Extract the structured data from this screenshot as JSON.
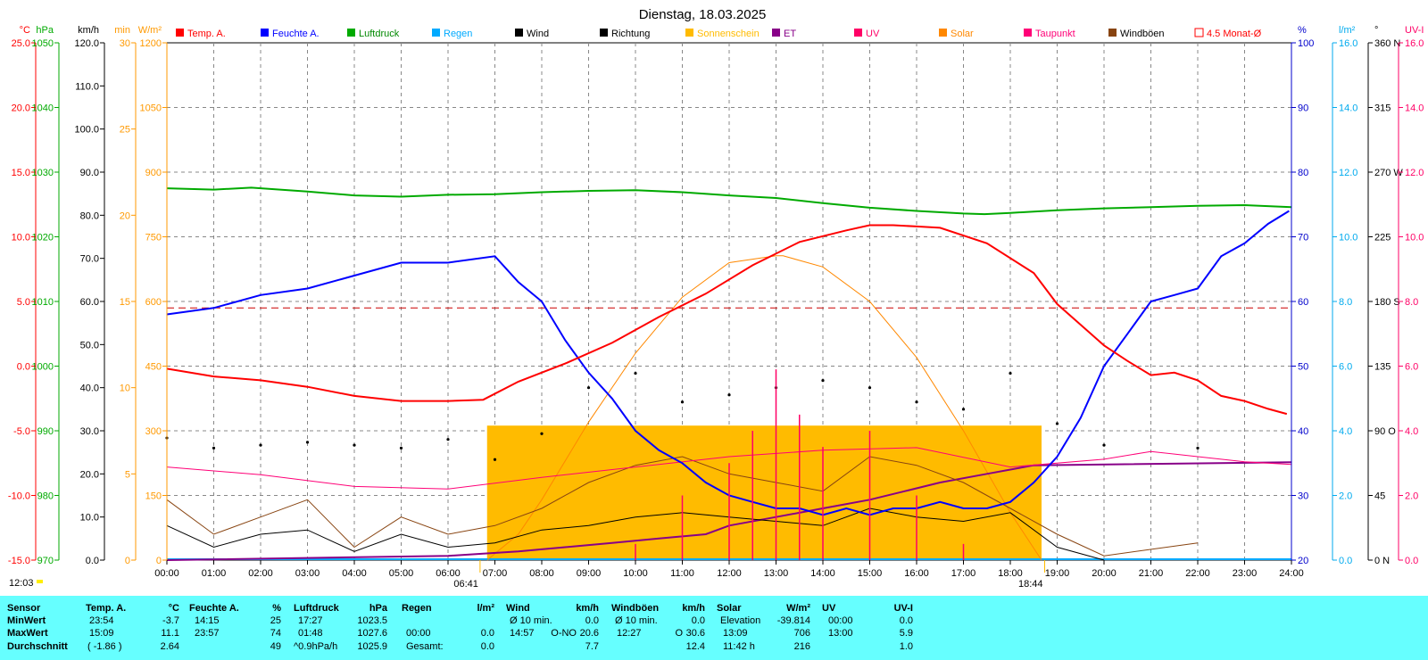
{
  "chart_data": {
    "type": "line",
    "title": "Dienstag, 18.03.2025",
    "left_axes": [
      {
        "unit": "°C",
        "color": "#ff0000",
        "range": [
          -15,
          25
        ],
        "ticks": [
          "25.0",
          "20.0",
          "15.0",
          "10.0",
          "5.0",
          "0.0",
          "-5.0",
          "-10.0",
          "-15.0"
        ]
      },
      {
        "unit": "hPa",
        "color": "#00aa00",
        "range": [
          970,
          1050
        ],
        "ticks": [
          "1050",
          "1040",
          "1030",
          "1020",
          "1010",
          "1000",
          "990",
          "980",
          "970"
        ]
      },
      {
        "unit": "km/h",
        "color": "#000000",
        "range": [
          0,
          120
        ],
        "ticks": [
          "120.0",
          "110.0",
          "100.0",
          "90.0",
          "80.0",
          "70.0",
          "60.0",
          "50.0",
          "40.0",
          "30.0",
          "20.0",
          "10.0",
          "0.0"
        ]
      },
      {
        "unit": "min",
        "color": "#ff9900",
        "range": [
          0,
          30
        ],
        "ticks": [
          "30",
          "25",
          "20",
          "15",
          "10",
          "5",
          "0"
        ]
      },
      {
        "unit": "W/m²",
        "color": "#ff9900",
        "range": [
          0,
          1200
        ],
        "ticks": [
          "1200",
          "1050",
          "900",
          "750",
          "600",
          "450",
          "300",
          "150",
          "0"
        ]
      }
    ],
    "right_axes": [
      {
        "unit": "%",
        "color": "#0000cc",
        "range": [
          20,
          100
        ],
        "ticks": [
          "100",
          "90",
          "80",
          "70",
          "60",
          "50",
          "40",
          "30",
          "20"
        ]
      },
      {
        "unit": "l/m²",
        "color": "#00aaee",
        "range": [
          0,
          16
        ],
        "ticks": [
          "16.0",
          "14.0",
          "12.0",
          "10.0",
          "8.0",
          "6.0",
          "4.0",
          "2.0",
          "0.0"
        ]
      },
      {
        "unit": "°",
        "color": "#000000",
        "range": [
          0,
          360
        ],
        "ticks": [
          "360 N",
          "315",
          "270 W",
          "225",
          "180 S",
          "135",
          "90 O",
          "45",
          "0 N"
        ]
      },
      {
        "unit": "UV-I",
        "color": "#ff0066",
        "range": [
          0,
          16
        ],
        "ticks": [
          "16.0",
          "14.0",
          "12.0",
          "10.0",
          "8.0",
          "6.0",
          "4.0",
          "2.0",
          "0.0"
        ]
      }
    ],
    "x_ticks": [
      "00:00",
      "01:00",
      "02:00",
      "03:00",
      "04:00",
      "05:00",
      "06:00",
      "07:00",
      "08:00",
      "09:00",
      "10:00",
      "11:00",
      "12:00",
      "13:00",
      "14:00",
      "15:00",
      "16:00",
      "17:00",
      "18:00",
      "19:00",
      "20:00",
      "21:00",
      "22:00",
      "23:00",
      "24:00"
    ],
    "sunrise": "06:41",
    "sunset": "18:44",
    "sun_time_label": "12:03",
    "legend": [
      {
        "label": "Temp. A.",
        "color": "#ff0000",
        "label_color": "#ff0000"
      },
      {
        "label": "Feuchte A.",
        "color": "#0000ff",
        "label_color": "#0000ff"
      },
      {
        "label": "Luftdruck",
        "color": "#00aa00",
        "label_color": "#008800"
      },
      {
        "label": "Regen",
        "color": "#00aaff",
        "label_color": "#00aaff"
      },
      {
        "label": "Wind",
        "color": "#000000",
        "label_color": "#000000"
      },
      {
        "label": "Richtung",
        "color": "#000000",
        "label_color": "#000000"
      },
      {
        "label": "Sonnenschein",
        "color": "#ffbb00",
        "label_color": "#ffbb00"
      },
      {
        "label": "ET",
        "color": "#880088",
        "label_color": "#880088"
      },
      {
        "label": "UV",
        "color": "#ff0066",
        "label_color": "#ff0066"
      },
      {
        "label": "Solar",
        "color": "#ff8800",
        "label_color": "#ff8800"
      },
      {
        "label": "Taupunkt",
        "color": "#ff0077",
        "label_color": "#ff0077"
      },
      {
        "label": "Windböen",
        "color": "#884411",
        "label_color": "#000000"
      },
      {
        "label": "4.5 Monat-Ø",
        "color": "#ff0000",
        "label_color": "#ff0000",
        "outline": true
      }
    ],
    "monthly_avg_temp": 4.5,
    "sunshine_block": {
      "from": "06:50",
      "to": "18:40",
      "minutes": 7.8
    },
    "series": [
      {
        "name": "Temp. A.",
        "axis": "°C",
        "color": "#ff0000",
        "x": [
          "00:00",
          "01:00",
          "02:00",
          "03:00",
          "04:00",
          "05:00",
          "06:00",
          "06:45",
          "07:30",
          "08:30",
          "09:30",
          "10:30",
          "11:30",
          "12:30",
          "13:30",
          "14:30",
          "15:00",
          "15:30",
          "16:00",
          "16:30",
          "17:30",
          "18:30",
          "19:00",
          "19:30",
          "20:00",
          "20:30",
          "21:00",
          "21:30",
          "22:00",
          "22:30",
          "23:00",
          "23:30",
          "23:54"
        ],
        "values": [
          -0.2,
          -0.8,
          -1.1,
          -1.6,
          -2.3,
          -2.7,
          -2.7,
          -2.6,
          -1.2,
          0.2,
          1.8,
          3.8,
          5.6,
          7.8,
          9.6,
          10.5,
          10.9,
          10.9,
          10.8,
          10.7,
          9.5,
          7.2,
          4.8,
          3.2,
          1.6,
          0.4,
          -0.7,
          -0.5,
          -1.1,
          -2.3,
          -2.7,
          -3.3,
          -3.7
        ]
      },
      {
        "name": "Feuchte A.",
        "axis": "%",
        "color": "#0000ff",
        "x": [
          "00:00",
          "01:00",
          "02:00",
          "03:00",
          "04:00",
          "05:00",
          "06:00",
          "07:00",
          "07:30",
          "08:00",
          "08:30",
          "09:00",
          "09:30",
          "10:00",
          "10:30",
          "11:00",
          "11:30",
          "12:00",
          "12:30",
          "13:00",
          "13:30",
          "14:00",
          "14:30",
          "15:00",
          "15:30",
          "16:00",
          "16:30",
          "17:00",
          "17:30",
          "18:00",
          "18:30",
          "19:00",
          "19:30",
          "20:00",
          "20:30",
          "21:00",
          "21:30",
          "22:00",
          "22:30",
          "23:00",
          "23:30",
          "23:57"
        ],
        "values": [
          58,
          59,
          61,
          62,
          64,
          66,
          66,
          67,
          63,
          60,
          54,
          49,
          45,
          40,
          37,
          35,
          32,
          30,
          29,
          28,
          28,
          27,
          28,
          27,
          28,
          28,
          29,
          28,
          28,
          29,
          32,
          36,
          42,
          50,
          55,
          60,
          61,
          62,
          67,
          69,
          72,
          74
        ]
      },
      {
        "name": "Luftdruck",
        "axis": "hPa",
        "color": "#00aa00",
        "x": [
          "00:00",
          "01:00",
          "01:48",
          "03:00",
          "04:00",
          "05:00",
          "06:00",
          "07:00",
          "08:00",
          "09:00",
          "10:00",
          "11:00",
          "12:00",
          "13:00",
          "14:00",
          "15:00",
          "16:00",
          "17:00",
          "17:27",
          "18:00",
          "19:00",
          "20:00",
          "21:00",
          "22:00",
          "23:00",
          "24:00"
        ],
        "values": [
          1027.5,
          1027.3,
          1027.6,
          1027.0,
          1026.4,
          1026.2,
          1026.5,
          1026.6,
          1026.9,
          1027.1,
          1027.2,
          1026.9,
          1026.4,
          1026.0,
          1025.2,
          1024.5,
          1024.0,
          1023.6,
          1023.5,
          1023.7,
          1024.1,
          1024.4,
          1024.6,
          1024.8,
          1024.9,
          1024.6
        ]
      },
      {
        "name": "Taupunkt",
        "axis": "°C",
        "color": "#ff0077",
        "x": [
          "00:00",
          "02:00",
          "04:00",
          "06:00",
          "08:00",
          "10:00",
          "12:00",
          "14:00",
          "16:00",
          "18:00",
          "20:00",
          "21:00",
          "22:00",
          "23:00",
          "24:00"
        ],
        "values": [
          -7.8,
          -8.4,
          -9.3,
          -9.5,
          -8.6,
          -7.8,
          -7.0,
          -6.5,
          -6.3,
          -7.8,
          -7.2,
          -6.6,
          -7.0,
          -7.4,
          -7.6
        ]
      },
      {
        "name": "Solar",
        "axis": "W/m²",
        "color": "#ff8800",
        "x": [
          "06:50",
          "07:30",
          "08:00",
          "09:00",
          "10:00",
          "11:00",
          "12:00",
          "13:00",
          "13:09",
          "14:00",
          "15:00",
          "16:00",
          "17:00",
          "18:00",
          "18:40"
        ],
        "values": [
          0,
          60,
          140,
          320,
          480,
          610,
          690,
          706,
          706,
          680,
          600,
          470,
          300,
          110,
          0
        ]
      },
      {
        "name": "Wind",
        "axis": "km/h",
        "color": "#000000",
        "x": [
          "00:00",
          "01:00",
          "02:00",
          "03:00",
          "04:00",
          "05:00",
          "06:00",
          "07:00",
          "08:00",
          "09:00",
          "10:00",
          "11:00",
          "12:00",
          "13:00",
          "14:00",
          "15:00",
          "16:00",
          "17:00",
          "18:00",
          "19:00",
          "20:00"
        ],
        "values": [
          8,
          3,
          6,
          7,
          2,
          6,
          3,
          4,
          7,
          8,
          10,
          11,
          10,
          9,
          8,
          12,
          10,
          9,
          11,
          3,
          0
        ]
      },
      {
        "name": "Windböen",
        "axis": "km/h",
        "color": "#884411",
        "x": [
          "00:00",
          "01:00",
          "02:00",
          "03:00",
          "04:00",
          "05:00",
          "06:00",
          "07:00",
          "08:00",
          "09:00",
          "10:00",
          "11:00",
          "12:00",
          "13:00",
          "14:00",
          "15:00",
          "16:00",
          "17:00",
          "18:00",
          "19:00",
          "20:00",
          "22:00"
        ],
        "values": [
          14,
          6,
          10,
          14,
          3,
          10,
          6,
          8,
          12,
          18,
          22,
          24,
          20,
          18,
          16,
          24,
          22,
          18,
          12,
          6,
          1,
          4
        ]
      },
      {
        "name": "ET",
        "axis": "km/h",
        "color": "#880088",
        "x": [
          "00:00",
          "06:00",
          "07:30",
          "08:30",
          "09:30",
          "10:30",
          "11:30",
          "12:00",
          "13:00",
          "14:00",
          "15:00",
          "15:45",
          "16:30",
          "17:30",
          "18:30",
          "24:00"
        ],
        "values": [
          0,
          1,
          2,
          3,
          4,
          5,
          6,
          8,
          10,
          12,
          14,
          16,
          18,
          20,
          22,
          22.7
        ]
      },
      {
        "name": "Richtung",
        "axis": "°",
        "color": "#000000",
        "x": [
          "00:00",
          "01:00",
          "02:00",
          "03:00",
          "04:00",
          "05:00",
          "06:00",
          "07:00",
          "08:00",
          "09:00",
          "10:00",
          "11:00",
          "12:00",
          "13:00",
          "14:00",
          "15:00",
          "16:00",
          "17:00",
          "18:00",
          "19:00",
          "20:00",
          "22:00"
        ],
        "values": [
          85,
          78,
          80,
          82,
          80,
          78,
          84,
          70,
          88,
          120,
          130,
          110,
          115,
          120,
          125,
          120,
          110,
          105,
          130,
          95,
          80,
          78
        ]
      },
      {
        "name": "UV",
        "axis": "UV-I",
        "color": "#ff0066",
        "x": [
          "10:00",
          "11:00",
          "12:00",
          "12:30",
          "13:00",
          "13:30",
          "14:00",
          "15:00",
          "16:00",
          "17:00"
        ],
        "values": [
          0.5,
          2.0,
          3.0,
          4.0,
          5.9,
          4.5,
          3.5,
          4.0,
          2.0,
          0.5
        ]
      }
    ]
  },
  "stats": {
    "headers": {
      "sensor": "Sensor",
      "temp": "Temp. A.",
      "temp_unit": "°C",
      "hum": "Feuchte A.",
      "hum_unit": "%",
      "press": "Luftdruck",
      "press_unit": "hPa",
      "rain": "Regen",
      "rain_unit": "l/m²",
      "wind": "Wind",
      "wind_unit": "km/h",
      "gust": "Windböen",
      "gust_unit": "km/h",
      "solar": "Solar",
      "solar_unit": "W/m²",
      "uv": "UV",
      "uv_unit": "UV-I"
    },
    "min": {
      "label": "MinWert",
      "temp_time": "23:54",
      "temp_val": "-3.7",
      "hum_time": "14:15",
      "hum_val": "25",
      "press_time": "17:27",
      "press_val": "1023.5",
      "wind_label": "Ø 10 min.",
      "wind_val": "0.0",
      "gust_label": "Ø 10 min.",
      "gust_val": "0.0",
      "solar_label": "Elevation",
      "solar_val": "-39.814",
      "uv_time": "00:00",
      "uv_val": "0.0"
    },
    "max": {
      "label": "MaxWert",
      "temp_time": "15:09",
      "temp_val": "11.1",
      "hum_time": "23:57",
      "hum_val": "74",
      "press_time": "01:48",
      "press_val": "1027.6",
      "rain_time": "00:00",
      "rain_val": "0.0",
      "wind_time": "14:57",
      "wind_dir": "O-NO",
      "wind_val": "20.6",
      "gust_time": "12:27",
      "gust_dir": "O",
      "gust_val": "30.6",
      "solar_time": "13:09",
      "solar_val": "706",
      "uv_time": "13:00",
      "uv_val": "5.9"
    },
    "avg": {
      "label": "Durchschnitt",
      "temp_note": "( -1.86 )",
      "temp_val": "2.64",
      "hum_val": "49",
      "press_note": "^0.9hPa/h",
      "press_val": "1025.9",
      "rain_label": "Gesamt:",
      "rain_val": "0.0",
      "wind_val": "7.7",
      "gust_val": "12.4",
      "solar_note": "11:42 h",
      "solar_val": "216",
      "uv_val": "1.0"
    }
  }
}
